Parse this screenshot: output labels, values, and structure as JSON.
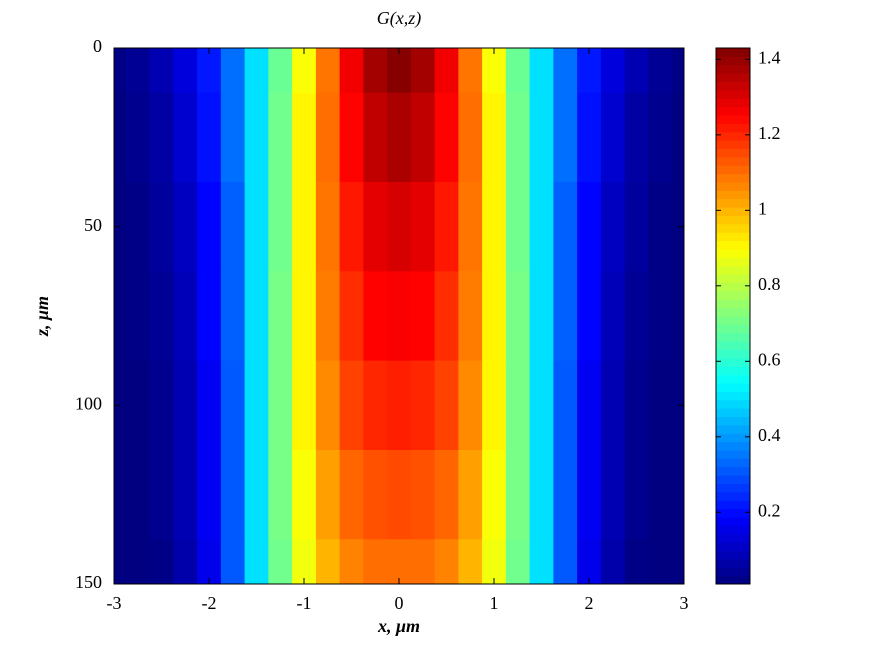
{
  "chart_data": {
    "type": "heatmap",
    "title": "G(x,z)",
    "x_label": "x, μm",
    "y_label": "z, μm",
    "colormap": "jet",
    "y_reversed": true,
    "x": [
      -3,
      -2.75,
      -2.5,
      -2.25,
      -2,
      -1.75,
      -1.5,
      -1.25,
      -1,
      -0.75,
      -0.5,
      -0.25,
      0,
      0.25,
      0.5,
      0.75,
      1,
      1.25,
      1.5,
      1.75,
      2,
      2.25,
      2.5,
      2.75,
      3
    ],
    "y": [
      0,
      25,
      50,
      75,
      100,
      125,
      150
    ],
    "values": [
      [
        0.02,
        0.04,
        0.08,
        0.14,
        0.22,
        0.34,
        0.5,
        0.69,
        0.89,
        1.09,
        1.27,
        1.38,
        1.42,
        1.38,
        1.27,
        1.09,
        0.89,
        0.69,
        0.5,
        0.34,
        0.22,
        0.14,
        0.08,
        0.04,
        0.02
      ],
      [
        0.01,
        0.03,
        0.06,
        0.12,
        0.21,
        0.34,
        0.5,
        0.7,
        0.91,
        1.1,
        1.25,
        1.34,
        1.37,
        1.34,
        1.25,
        1.1,
        0.91,
        0.7,
        0.5,
        0.34,
        0.21,
        0.12,
        0.06,
        0.03,
        0.01
      ],
      [
        0.01,
        0.02,
        0.05,
        0.1,
        0.19,
        0.32,
        0.5,
        0.7,
        0.91,
        1.09,
        1.22,
        1.29,
        1.31,
        1.29,
        1.22,
        1.09,
        0.91,
        0.7,
        0.5,
        0.32,
        0.19,
        0.1,
        0.05,
        0.02,
        0.01
      ],
      [
        0.01,
        0.02,
        0.04,
        0.09,
        0.19,
        0.32,
        0.5,
        0.71,
        0.91,
        1.08,
        1.19,
        1.25,
        1.26,
        1.25,
        1.19,
        1.08,
        0.91,
        0.71,
        0.5,
        0.32,
        0.19,
        0.09,
        0.04,
        0.02,
        0.01
      ],
      [
        0.01,
        0.01,
        0.03,
        0.08,
        0.17,
        0.31,
        0.5,
        0.71,
        0.91,
        1.06,
        1.16,
        1.2,
        1.21,
        1.2,
        1.16,
        1.06,
        0.91,
        0.71,
        0.5,
        0.31,
        0.17,
        0.08,
        0.03,
        0.01,
        0.01
      ],
      [
        0.01,
        0.01,
        0.03,
        0.08,
        0.17,
        0.31,
        0.5,
        0.71,
        0.89,
        1.03,
        1.11,
        1.14,
        1.15,
        1.14,
        1.11,
        1.03,
        0.89,
        0.71,
        0.5,
        0.31,
        0.17,
        0.08,
        0.03,
        0.01,
        0.01
      ],
      [
        0.01,
        0.01,
        0.02,
        0.07,
        0.16,
        0.31,
        0.5,
        0.7,
        0.88,
        1.0,
        1.07,
        1.1,
        1.1,
        1.1,
        1.07,
        1.0,
        0.88,
        0.7,
        0.5,
        0.31,
        0.16,
        0.07,
        0.02,
        0.01,
        0.01
      ]
    ],
    "xlim": [
      -3,
      3
    ],
    "ylim": [
      0,
      150
    ],
    "xticks": [
      -3,
      -2,
      -1,
      0,
      1,
      2,
      3
    ],
    "yticks": [
      0,
      50,
      100,
      150
    ],
    "colorbar": {
      "clim": [
        0.01,
        1.43
      ],
      "ticks": [
        0.2,
        0.4,
        0.6,
        0.8,
        1,
        1.2,
        1.4
      ]
    }
  }
}
